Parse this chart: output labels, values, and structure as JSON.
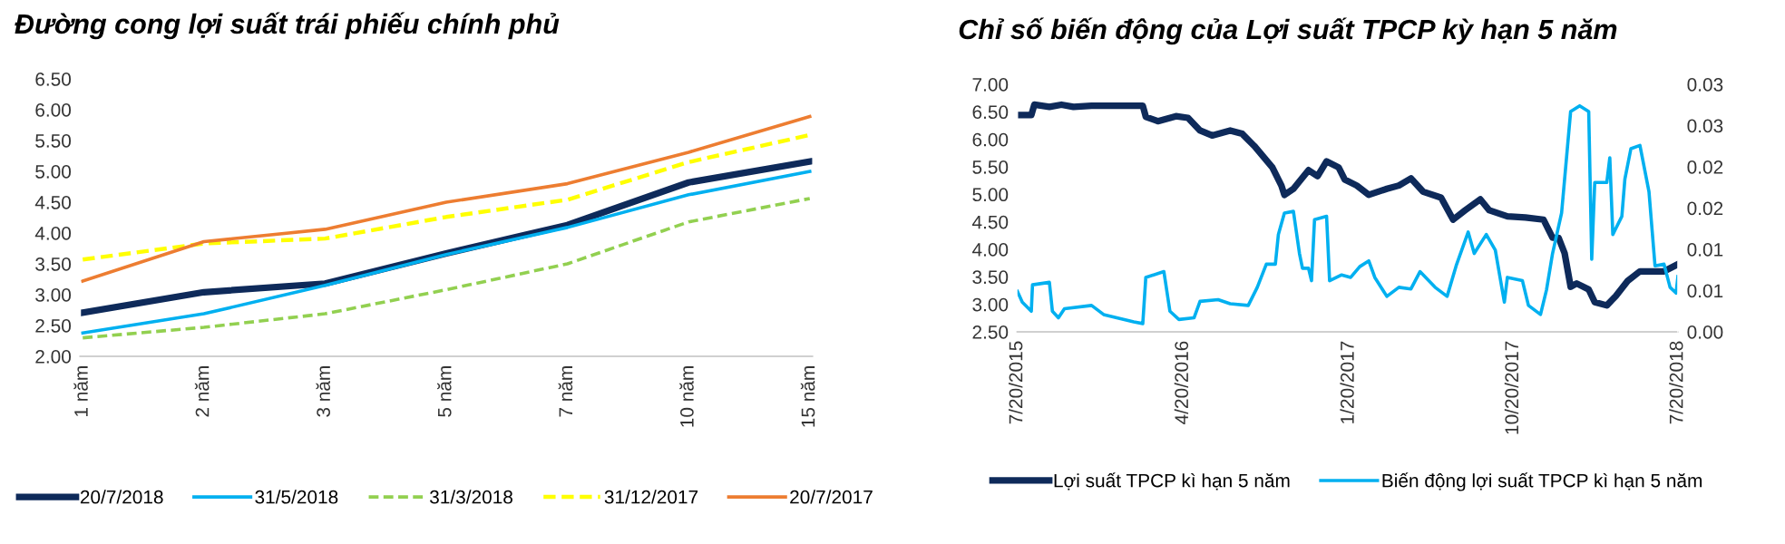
{
  "chart_data": [
    {
      "type": "line",
      "title": "Đường cong lợi suất trái phiếu chính phủ",
      "categories": [
        "1 năm",
        "2 năm",
        "3 năm",
        "5 năm",
        "7 năm",
        "10 năm",
        "15 năm"
      ],
      "ylim": [
        2.0,
        6.5
      ],
      "yticks": [
        {
          "value": 2.0,
          "label": "2.00"
        },
        {
          "value": 2.5,
          "label": "2.50"
        },
        {
          "value": 3.0,
          "label": "3.00"
        },
        {
          "value": 3.5,
          "label": "3.50"
        },
        {
          "value": 4.0,
          "label": "4.00"
        },
        {
          "value": 4.5,
          "label": "4.50"
        },
        {
          "value": 5.0,
          "label": "5.00"
        },
        {
          "value": 5.5,
          "label": "5.50"
        },
        {
          "value": 6.0,
          "label": "6.00"
        },
        {
          "value": 6.5,
          "label": "6.50"
        }
      ],
      "grid": false,
      "legend": "bottom",
      "marker": "none",
      "series": [
        {
          "name": "20/7/2018",
          "color": "#0e2a5a",
          "line_style": "solid",
          "values": [
            2.71,
            3.04,
            3.18,
            3.67,
            4.13,
            4.82,
            5.16
          ]
        },
        {
          "name": "31/5/2018",
          "color": "#00b0f0",
          "line_style": "solid",
          "values": [
            2.38,
            2.69,
            3.15,
            3.65,
            4.09,
            4.62,
            5.0
          ]
        },
        {
          "name": "31/3/2018",
          "color": "#92d050",
          "line_style": "dashed",
          "values": [
            2.3,
            2.47,
            2.69,
            3.08,
            3.5,
            4.18,
            4.56
          ]
        },
        {
          "name": "31/12/2017",
          "color": "#ffff00",
          "line_style": "dashed",
          "values": [
            3.57,
            3.83,
            3.91,
            4.26,
            4.54,
            5.15,
            5.59
          ]
        },
        {
          "name": "20/7/2017",
          "color": "#ed7d31",
          "line_style": "solid",
          "values": [
            3.22,
            3.86,
            4.06,
            4.5,
            4.8,
            5.31,
            5.89
          ]
        }
      ]
    },
    {
      "type": "line",
      "title": "Chỉ số biến động của Lợi suất TPCP kỳ hạn 5 năm",
      "xlim": [
        "2015-07-20",
        "2018-07-20"
      ],
      "xticks": [
        {
          "value": "2015-07-20",
          "label": "7/20/2015"
        },
        {
          "value": "2016-04-20",
          "label": "4/20/2016"
        },
        {
          "value": "2017-01-20",
          "label": "1/20/2017"
        },
        {
          "value": "2017-10-20",
          "label": "10/20/2017"
        },
        {
          "value": "2018-07-20",
          "label": "7/20/2018"
        }
      ],
      "ylim": [
        2.5,
        7.0
      ],
      "yticks": [
        {
          "value": 2.5,
          "label": "2.50"
        },
        {
          "value": 3.0,
          "label": "3.00"
        },
        {
          "value": 3.5,
          "label": "3.50"
        },
        {
          "value": 4.0,
          "label": "4.00"
        },
        {
          "value": 4.5,
          "label": "4.50"
        },
        {
          "value": 5.0,
          "label": "5.00"
        },
        {
          "value": 5.5,
          "label": "5.50"
        },
        {
          "value": 6.0,
          "label": "6.00"
        },
        {
          "value": 6.5,
          "label": "6.50"
        },
        {
          "value": 7.0,
          "label": "7.00"
        }
      ],
      "y2lim": [
        0,
        0.03
      ],
      "y2ticks": [
        {
          "value": 0,
          "label": "0.00"
        },
        {
          "value": 0.005,
          "label": "0.01"
        },
        {
          "value": 0.01,
          "label": "0.01"
        },
        {
          "value": 0.015,
          "label": "0.02"
        },
        {
          "value": 0.02,
          "label": "0.02"
        },
        {
          "value": 0.025,
          "label": "0.03"
        },
        {
          "value": 0.03,
          "label": "0.03"
        }
      ],
      "grid": false,
      "legend": "bottom",
      "marker": "none",
      "series": [
        {
          "name": "Lợi suất TPCP kì hạn 5 năm",
          "color": "#0e2a5a",
          "line_style": "solid",
          "x": [
            "2015-07-20",
            "2015-08-12",
            "2015-08-17",
            "2015-09-11",
            "2015-10-01",
            "2015-10-21",
            "2015-11-20",
            "2015-12-20",
            "2016-02-13",
            "2016-02-18",
            "2016-03-09",
            "2016-04-08",
            "2016-04-28",
            "2016-05-18",
            "2016-06-07",
            "2016-07-07",
            "2016-07-27",
            "2016-08-16",
            "2016-09-15",
            "2016-09-30",
            "2016-10-05",
            "2016-10-20",
            "2016-11-14",
            "2016-11-29",
            "2016-12-14",
            "2017-01-03",
            "2017-01-13",
            "2017-02-02",
            "2017-02-22",
            "2017-03-24",
            "2017-04-13",
            "2017-05-03",
            "2017-05-23",
            "2017-06-22",
            "2017-07-12",
            "2017-08-01",
            "2017-08-26",
            "2017-09-10",
            "2017-10-10",
            "2017-11-09",
            "2017-12-09",
            "2017-12-24",
            "2018-01-03",
            "2018-01-13",
            "2018-01-23",
            "2018-02-02",
            "2018-02-22",
            "2018-03-04",
            "2018-03-24",
            "2018-04-08",
            "2018-04-28",
            "2018-05-18",
            "2018-06-07",
            "2018-06-27",
            "2018-07-20"
          ],
          "values": [
            6.44,
            6.44,
            6.63,
            6.59,
            6.63,
            6.59,
            6.61,
            6.61,
            6.61,
            6.41,
            6.33,
            6.42,
            6.39,
            6.16,
            6.07,
            6.16,
            6.1,
            5.88,
            5.49,
            5.16,
            4.99,
            5.1,
            5.44,
            5.33,
            5.6,
            5.49,
            5.27,
            5.16,
            4.99,
            5.1,
            5.16,
            5.29,
            5.05,
            4.94,
            4.54,
            4.71,
            4.91,
            4.71,
            4.6,
            4.58,
            4.54,
            4.21,
            4.21,
            3.93,
            3.32,
            3.38,
            3.27,
            3.04,
            2.98,
            3.15,
            3.43,
            3.6,
            3.6,
            3.6,
            3.73
          ]
        },
        {
          "name": "Biến động lợi suất TPCP kì hạn 5 năm",
          "color": "#00b0f0",
          "line_style": "solid",
          "axis": "y2",
          "x": [
            "2015-07-20",
            "2015-07-28",
            "2015-08-12",
            "2015-08-14",
            "2015-09-11",
            "2015-09-16",
            "2015-09-26",
            "2015-10-06",
            "2015-11-20",
            "2015-12-10",
            "2016-01-29",
            "2016-02-13",
            "2016-02-18",
            "2016-03-19",
            "2016-03-29",
            "2016-04-13",
            "2016-05-08",
            "2016-05-18",
            "2016-06-17",
            "2016-07-07",
            "2016-08-06",
            "2016-08-21",
            "2016-09-05",
            "2016-09-20",
            "2016-09-25",
            "2016-10-05",
            "2016-10-20",
            "2016-10-30",
            "2016-11-04",
            "2016-11-14",
            "2016-11-19",
            "2016-11-24",
            "2016-12-14",
            "2016-12-19",
            "2017-01-08",
            "2017-01-23",
            "2017-02-07",
            "2017-02-22",
            "2017-03-04",
            "2017-03-24",
            "2017-04-13",
            "2017-05-03",
            "2017-05-18",
            "2017-06-12",
            "2017-07-02",
            "2017-07-17",
            "2017-08-06",
            "2017-08-16",
            "2017-09-05",
            "2017-09-20",
            "2017-10-05",
            "2017-10-10",
            "2017-11-04",
            "2017-11-14",
            "2017-12-04",
            "2017-12-14",
            "2017-12-24",
            "2018-01-08",
            "2018-01-23",
            "2018-02-07",
            "2018-02-22",
            "2018-02-27",
            "2018-03-04",
            "2018-03-24",
            "2018-03-29",
            "2018-04-03",
            "2018-04-18",
            "2018-04-23",
            "2018-05-03",
            "2018-05-18",
            "2018-06-02",
            "2018-06-12",
            "2018-06-27",
            "2018-07-07",
            "2018-07-17",
            "2018-07-20"
          ],
          "values": [
            0.0049,
            0.0036,
            0.0025,
            0.0057,
            0.006,
            0.0025,
            0.0017,
            0.0028,
            0.0032,
            0.0021,
            0.0012,
            0.001,
            0.0066,
            0.0073,
            0.0025,
            0.0015,
            0.0017,
            0.0037,
            0.0039,
            0.0034,
            0.0032,
            0.0054,
            0.0082,
            0.0082,
            0.0118,
            0.0144,
            0.0146,
            0.0095,
            0.0077,
            0.0077,
            0.0062,
            0.0136,
            0.014,
            0.0062,
            0.0069,
            0.0066,
            0.0079,
            0.0086,
            0.0066,
            0.0043,
            0.0054,
            0.0052,
            0.0073,
            0.0054,
            0.0043,
            0.008,
            0.0121,
            0.0095,
            0.0118,
            0.0099,
            0.0036,
            0.0066,
            0.0062,
            0.0032,
            0.0021,
            0.0051,
            0.0095,
            0.0144,
            0.0267,
            0.0274,
            0.0267,
            0.0088,
            0.0181,
            0.0181,
            0.0211,
            0.0118,
            0.014,
            0.0185,
            0.0222,
            0.0226,
            0.017,
            0.008,
            0.0082,
            0.0054,
            0.0047,
            0.0067
          ]
        }
      ]
    }
  ]
}
